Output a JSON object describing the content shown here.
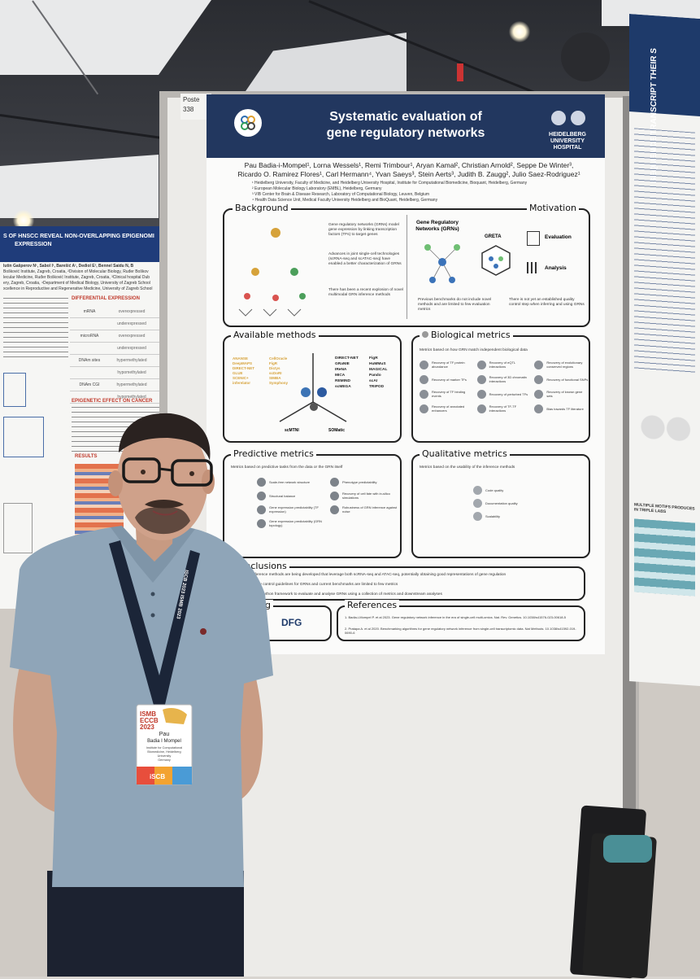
{
  "left_poster": {
    "title_line1": "S OF HNSCC REVEAL NON-OVERLAPPING EPIGENOMI",
    "title_line2": "EXPRESSION",
    "authors": "lutin Gašperov N¹, Sabol I¹, Barešić A¹, Dediol E², Bennel Saidu N, B",
    "affil1": "Bošković Institute, Zagreb, Croatia, ²Division of Molecular Biology, Ruđer Boškov",
    "affil2": "lecular Medicine, Ruđer Bošković Institute, Zagreb, Croatia, ³Clinical hospital Dub",
    "affil3": "ery, Zagreb, Croatia, ⁴Department of Medical Biology, University of Zagreb School",
    "affil4": "xcellence in Reproductive and Regenerative Medicine, University of Zagreb School",
    "diff_heading": "DIFFERENTIAL EXPRESSION",
    "table": [
      {
        "label": "mRNA",
        "value": "overexpressed"
      },
      {
        "label": "",
        "value": "underexpressed"
      },
      {
        "label": "microRNA",
        "value": "overexpressed"
      },
      {
        "label": "",
        "value": "underexpressed"
      },
      {
        "label": "DNAm sites",
        "value": "hypermethylated"
      },
      {
        "label": "",
        "value": "hypomethylated"
      },
      {
        "label": "DNAm CGI",
        "value": "hypermethylated"
      },
      {
        "label": "",
        "value": "hypomethylated"
      }
    ],
    "epi_heading": "EPIGENETIC EFFECT ON CANCER",
    "results_heading": "RESULTS"
  },
  "poster_number": "Poste 338",
  "poster": {
    "title_line1": "Systematic evaluation of",
    "title_line2": "gene regulatory networks",
    "institution_line1": "HEIDELBERG",
    "institution_line2": "UNIVERSITY",
    "institution_line3": "HOSPITAL",
    "authors_line1": "Pau Badia-i-Mompel¹, Lorna Wessels¹, Remi Trimbour¹, Aryan Kamal², Christian Arnold², Seppe De Winter³,",
    "authors_line2": "Ricardo O. Ramirez Flores¹, Carl Hermann⁴, Yvan Saeys³, Stein Aerts³, Judith B. Zaugg², Julio Saez-Rodriguez¹",
    "affil1": "¹ Heidelberg University, Faculty of Medicine, and Heidelberg University Hospital, Institute for Computational Biomedicine, Bioquant, Heidelberg, Germany",
    "affil2": "² European Molecular Biology Laboratory (EMBL), Heidelberg, Germany",
    "affil3": "³ VIB Center for Brain & Disease Research, Laboratory of Computational Biology, Leuven, Belgium",
    "affil4": "⁴ Health Data Science Unit, Medical Faculty University Heidelberg and BioQuant, Heidelberg, Germany",
    "background": {
      "title": "Background",
      "motivation_title": "Motivation",
      "grn_title": "Gene Regulatory Networks (GRNs)",
      "greta": "GRETA",
      "evaluation": "Evaluation",
      "analysis": "Analysis",
      "bullet1": "Gene regulatory networks (GRNs) model gene expression by linking transcription factors (TFs) to target genes",
      "bullet2": "Advances in joint single-cell technologies (scRNA-seq and scATAC-seq) have enabled a better characterization of GRNs",
      "bullet3": "There has been a recent explosion of novel multimodal GRN inference methods",
      "bullet4": "Previous benchmarks do not include novel methods and are limited to few evaluation metrics",
      "bullet5": "There is not yet an established quality control step when inferring and using GRNs"
    },
    "available": {
      "title": "Available methods",
      "left_methods": [
        "ANANSE",
        "CellOracle",
        "DeepMAPS",
        "FigR",
        "DIRECT-NET",
        "Dictys",
        "GLUE",
        "scDoRI",
        "SCENIC+",
        "SIMBA",
        "inferelator",
        "Symphony"
      ],
      "right_methods": [
        "DIRECT-NET",
        "FigR",
        "GRaNIE",
        "HuMMuS",
        "IReNA",
        "MAGICAL",
        "MICA",
        "Pando",
        "REMIND",
        "scAI",
        "scMEGA",
        "TRIPOD"
      ],
      "lang1": "scMTNI",
      "lang2": "SOMatic"
    },
    "biological": {
      "title": "Biological metrics",
      "intro": "Metrics based on how GRN match independent biological data",
      "items": [
        "Recovery of TF protein abundance",
        "Recovery of eQTL interactions",
        "Recovery of evolutionary conserved regions",
        "Recovery of marker TFs",
        "Recovery of 3D chromatin interactions",
        "Recovery of functional SNPs",
        "Recovery of TF binding events",
        "Recovery of perturbed TFs",
        "Recovery of known gene sets",
        "Recovery of annotated enhancers",
        "Recovery of TF-TF interactions",
        "Bias towards TF literature"
      ]
    },
    "predictive": {
      "title": "Predictive metrics",
      "intro": "Metrics based on predictive tasks from the data or the GRN itself",
      "items": [
        "Scale-free network structure",
        "Phenotype predictability",
        "Structural balance",
        "Recovery of cell fate with in-silico simulations",
        "Gene expression predictability (TF expression)",
        "Robustness of GRN inference against noise",
        "Gene expression predictability (GRN topology)"
      ]
    },
    "qualitative": {
      "title": "Qualitative metrics",
      "intro": "Metrics based on the usability of the inference methods",
      "items": [
        "Code quality",
        "Documentation quality",
        "Scalability"
      ]
    },
    "conclusions": {
      "title": "Conclusions",
      "c1": "Novel GRN inference methods are being developed that leverage both scRNA-seq and ATAC-seq, potentially obtaining good representations of gene regulation",
      "c2": "is a lack of quality control guidelines for GRNs and current benchmarks are limited to few metrics",
      "c3": "uilding GRETA, a python framework to evaluate and analyse GRNs using a collection of metrics and downstream analyses"
    },
    "funding": {
      "title": "ng",
      "dfg": "DFG"
    },
    "references": {
      "title": "References",
      "r1": "1. Badia-i-Mompel P. et al 2023. Gene regulatory network inference in the era of single-cell multi-omics. Nat. Rev. Genetics. 10.1038/s41576-023-00618-5",
      "r2": "2. Pratapa A. et al 2020. Benchmarking algorithms for gene regulatory network inference from single-cell transcriptomic data. Nat Methods. 10.1038/s41592-019-0690-6"
    }
  },
  "badge": {
    "conf_line1": "ISMB",
    "conf_line2": "ECCB",
    "conf_line3": "2023",
    "name_first": "Pau",
    "name_last": "Badia I Mompel",
    "inst1": "Institute for Computational",
    "inst2": "Biomedicine, Heidelberg",
    "inst3": "University",
    "inst4": "Germany",
    "footer": "iSCB"
  },
  "lanyard_text": "ISCB 2023 ISMB 2023",
  "right_poster": {
    "title": "SEQUENCE TRANSCRIPT THEIR S",
    "section": "MULTIPLE MOTIFS PRODUCES IN TRIPLE LABS"
  },
  "colors": {
    "poster_header": "#22375f",
    "badge_gradient": "#e84e3c",
    "shirt": "#8ea3b5",
    "lanyard": "#1b2538"
  }
}
